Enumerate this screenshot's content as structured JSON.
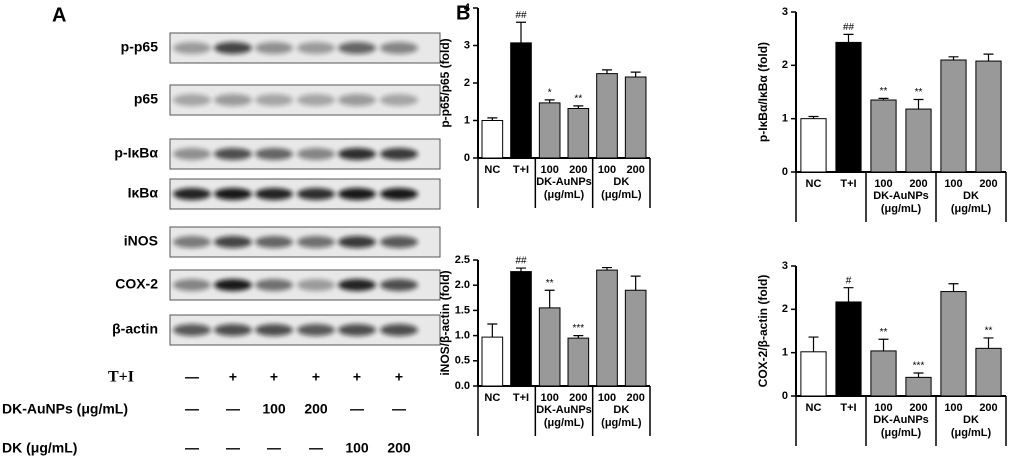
{
  "panel_a": {
    "label": "A",
    "blots": [
      "p-p65",
      "p65",
      "p-IκBα",
      "IκBα",
      "iNOS",
      "COX-2",
      "β-actin"
    ],
    "treatments": [
      {
        "name": "T+I",
        "values": [
          "—",
          "+",
          "+",
          "+",
          "+",
          "+"
        ]
      },
      {
        "name": "DK-AuNPs (μg/mL)",
        "values": [
          "—",
          "—",
          "100",
          "200",
          "—",
          "—"
        ]
      },
      {
        "name": "DK (μg/mL)",
        "values": [
          "—",
          "—",
          "—",
          "—",
          "100",
          "200"
        ]
      }
    ]
  },
  "panel_b": {
    "label": "B"
  },
  "chart_data": [
    {
      "type": "bar",
      "y_label": "p-p65/p65 (fold)",
      "categories": [
        "NC",
        "T+I",
        "100",
        "200",
        "100",
        "200"
      ],
      "groups": [
        {
          "name": "DK-AuNPs",
          "unit": "(μg/mL)"
        },
        {
          "name": "DK",
          "unit": "(μg/mL)"
        }
      ],
      "values": [
        1.0,
        3.07,
        1.47,
        1.32,
        2.25,
        2.16
      ],
      "errors": [
        0.07,
        0.55,
        0.08,
        0.07,
        0.1,
        0.13
      ],
      "annotations": [
        null,
        "##",
        "*",
        "**",
        null,
        null
      ],
      "colors": [
        "#ffffff",
        "#000000",
        "#999999",
        "#999999",
        "#999999",
        "#999999"
      ],
      "ylim": [
        0,
        4
      ],
      "yticks": [
        0,
        1,
        2,
        3,
        4
      ]
    },
    {
      "type": "bar",
      "y_label": "p-IκBα/IκBα (fold)",
      "categories": [
        "NC",
        "T+I",
        "100",
        "200",
        "100",
        "200"
      ],
      "groups": [
        {
          "name": "DK-AuNPs",
          "unit": "(μg/mL)"
        },
        {
          "name": "DK",
          "unit": "(μg/mL)"
        }
      ],
      "values": [
        1.0,
        2.43,
        1.35,
        1.18,
        2.1,
        2.08
      ],
      "errors": [
        0.04,
        0.15,
        0.03,
        0.18,
        0.06,
        0.13
      ],
      "annotations": [
        null,
        "##",
        "**",
        "**",
        null,
        null
      ],
      "colors": [
        "#ffffff",
        "#000000",
        "#999999",
        "#999999",
        "#999999",
        "#999999"
      ],
      "ylim": [
        0,
        3
      ],
      "yticks": [
        0,
        1,
        2,
        3
      ]
    },
    {
      "type": "bar",
      "y_label": "iNOS/β-actin (fold)",
      "categories": [
        "NC",
        "T+I",
        "100",
        "200",
        "100",
        "200"
      ],
      "groups": [
        {
          "name": "DK-AuNPs",
          "unit": "(μg/mL)"
        },
        {
          "name": "DK",
          "unit": "(μg/mL)"
        }
      ],
      "values": [
        0.97,
        2.27,
        1.55,
        0.95,
        2.3,
        1.9
      ],
      "errors": [
        0.26,
        0.07,
        0.35,
        0.05,
        0.05,
        0.28
      ],
      "annotations": [
        null,
        "##",
        "**",
        "***",
        null,
        null
      ],
      "colors": [
        "#ffffff",
        "#000000",
        "#999999",
        "#999999",
        "#999999",
        "#999999"
      ],
      "ylim": [
        0,
        2.5
      ],
      "yticks": [
        {
          "value": 0,
          "label": "0.0"
        },
        0.5,
        {
          "value": 1,
          "label": "1.0"
        },
        1.5,
        {
          "value": 2,
          "label": "2.0"
        },
        2.5
      ]
    },
    {
      "type": "bar",
      "y_label": "COX-2/β-actin (fold)",
      "categories": [
        "NC",
        "T+I",
        "100",
        "200",
        "100",
        "200"
      ],
      "groups": [
        {
          "name": "DK-AuNPs",
          "unit": "(μg/mL)"
        },
        {
          "name": "DK",
          "unit": "(μg/mL)"
        }
      ],
      "values": [
        1.02,
        2.17,
        1.04,
        0.43,
        2.41,
        1.1
      ],
      "errors": [
        0.34,
        0.33,
        0.27,
        0.1,
        0.18,
        0.24
      ],
      "annotations": [
        null,
        "#",
        "**",
        "***",
        null,
        "**"
      ],
      "colors": [
        "#ffffff",
        "#000000",
        "#999999",
        "#999999",
        "#999999",
        "#999999"
      ],
      "ylim": [
        0,
        3
      ],
      "yticks": [
        0,
        1,
        2,
        3
      ]
    }
  ]
}
